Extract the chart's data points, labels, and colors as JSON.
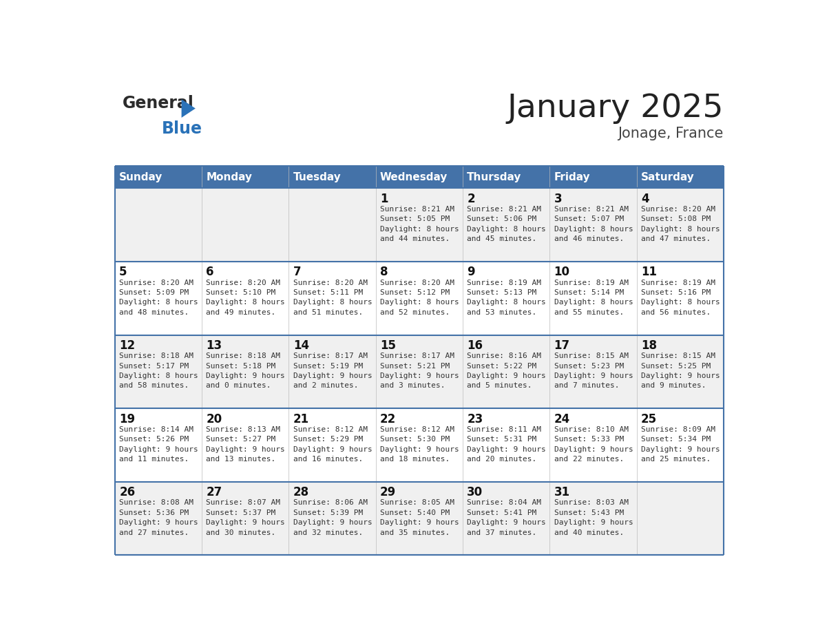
{
  "title": "January 2025",
  "subtitle": "Jonage, France",
  "days_of_week": [
    "Sunday",
    "Monday",
    "Tuesday",
    "Wednesday",
    "Thursday",
    "Friday",
    "Saturday"
  ],
  "header_bg": "#4472a8",
  "header_text": "#ffffff",
  "row_bg_odd": "#f0f0f0",
  "row_bg_even": "#ffffff",
  "cell_text_color": "#333333",
  "day_num_color": "#111111",
  "border_color": "#4472a8",
  "weeks": [
    {
      "days": [
        {
          "day": null,
          "sunrise": null,
          "sunset": null,
          "daylight": null
        },
        {
          "day": null,
          "sunrise": null,
          "sunset": null,
          "daylight": null
        },
        {
          "day": null,
          "sunrise": null,
          "sunset": null,
          "daylight": null
        },
        {
          "day": 1,
          "sunrise": "8:21 AM",
          "sunset": "5:05 PM",
          "daylight": "8 hours\nand 44 minutes."
        },
        {
          "day": 2,
          "sunrise": "8:21 AM",
          "sunset": "5:06 PM",
          "daylight": "8 hours\nand 45 minutes."
        },
        {
          "day": 3,
          "sunrise": "8:21 AM",
          "sunset": "5:07 PM",
          "daylight": "8 hours\nand 46 minutes."
        },
        {
          "day": 4,
          "sunrise": "8:20 AM",
          "sunset": "5:08 PM",
          "daylight": "8 hours\nand 47 minutes."
        }
      ]
    },
    {
      "days": [
        {
          "day": 5,
          "sunrise": "8:20 AM",
          "sunset": "5:09 PM",
          "daylight": "8 hours\nand 48 minutes."
        },
        {
          "day": 6,
          "sunrise": "8:20 AM",
          "sunset": "5:10 PM",
          "daylight": "8 hours\nand 49 minutes."
        },
        {
          "day": 7,
          "sunrise": "8:20 AM",
          "sunset": "5:11 PM",
          "daylight": "8 hours\nand 51 minutes."
        },
        {
          "day": 8,
          "sunrise": "8:20 AM",
          "sunset": "5:12 PM",
          "daylight": "8 hours\nand 52 minutes."
        },
        {
          "day": 9,
          "sunrise": "8:19 AM",
          "sunset": "5:13 PM",
          "daylight": "8 hours\nand 53 minutes."
        },
        {
          "day": 10,
          "sunrise": "8:19 AM",
          "sunset": "5:14 PM",
          "daylight": "8 hours\nand 55 minutes."
        },
        {
          "day": 11,
          "sunrise": "8:19 AM",
          "sunset": "5:16 PM",
          "daylight": "8 hours\nand 56 minutes."
        }
      ]
    },
    {
      "days": [
        {
          "day": 12,
          "sunrise": "8:18 AM",
          "sunset": "5:17 PM",
          "daylight": "8 hours\nand 58 minutes."
        },
        {
          "day": 13,
          "sunrise": "8:18 AM",
          "sunset": "5:18 PM",
          "daylight": "9 hours\nand 0 minutes."
        },
        {
          "day": 14,
          "sunrise": "8:17 AM",
          "sunset": "5:19 PM",
          "daylight": "9 hours\nand 2 minutes."
        },
        {
          "day": 15,
          "sunrise": "8:17 AM",
          "sunset": "5:21 PM",
          "daylight": "9 hours\nand 3 minutes."
        },
        {
          "day": 16,
          "sunrise": "8:16 AM",
          "sunset": "5:22 PM",
          "daylight": "9 hours\nand 5 minutes."
        },
        {
          "day": 17,
          "sunrise": "8:15 AM",
          "sunset": "5:23 PM",
          "daylight": "9 hours\nand 7 minutes."
        },
        {
          "day": 18,
          "sunrise": "8:15 AM",
          "sunset": "5:25 PM",
          "daylight": "9 hours\nand 9 minutes."
        }
      ]
    },
    {
      "days": [
        {
          "day": 19,
          "sunrise": "8:14 AM",
          "sunset": "5:26 PM",
          "daylight": "9 hours\nand 11 minutes."
        },
        {
          "day": 20,
          "sunrise": "8:13 AM",
          "sunset": "5:27 PM",
          "daylight": "9 hours\nand 13 minutes."
        },
        {
          "day": 21,
          "sunrise": "8:12 AM",
          "sunset": "5:29 PM",
          "daylight": "9 hours\nand 16 minutes."
        },
        {
          "day": 22,
          "sunrise": "8:12 AM",
          "sunset": "5:30 PM",
          "daylight": "9 hours\nand 18 minutes."
        },
        {
          "day": 23,
          "sunrise": "8:11 AM",
          "sunset": "5:31 PM",
          "daylight": "9 hours\nand 20 minutes."
        },
        {
          "day": 24,
          "sunrise": "8:10 AM",
          "sunset": "5:33 PM",
          "daylight": "9 hours\nand 22 minutes."
        },
        {
          "day": 25,
          "sunrise": "8:09 AM",
          "sunset": "5:34 PM",
          "daylight": "9 hours\nand 25 minutes."
        }
      ]
    },
    {
      "days": [
        {
          "day": 26,
          "sunrise": "8:08 AM",
          "sunset": "5:36 PM",
          "daylight": "9 hours\nand 27 minutes."
        },
        {
          "day": 27,
          "sunrise": "8:07 AM",
          "sunset": "5:37 PM",
          "daylight": "9 hours\nand 30 minutes."
        },
        {
          "day": 28,
          "sunrise": "8:06 AM",
          "sunset": "5:39 PM",
          "daylight": "9 hours\nand 32 minutes."
        },
        {
          "day": 29,
          "sunrise": "8:05 AM",
          "sunset": "5:40 PM",
          "daylight": "9 hours\nand 35 minutes."
        },
        {
          "day": 30,
          "sunrise": "8:04 AM",
          "sunset": "5:41 PM",
          "daylight": "9 hours\nand 37 minutes."
        },
        {
          "day": 31,
          "sunrise": "8:03 AM",
          "sunset": "5:43 PM",
          "daylight": "9 hours\nand 40 minutes."
        },
        {
          "day": null,
          "sunrise": null,
          "sunset": null,
          "daylight": null
        }
      ]
    }
  ]
}
